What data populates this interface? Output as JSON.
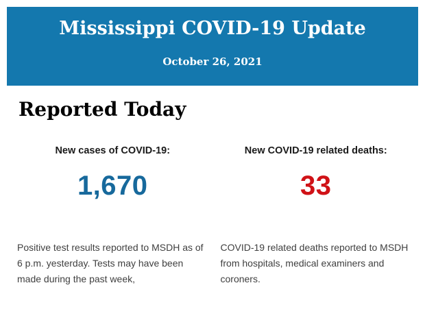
{
  "header": {
    "title": "Mississippi COVID-19 Update",
    "date": "October 26, 2021",
    "background_color": "#1478AE",
    "text_color": "#ffffff"
  },
  "section": {
    "title": "Reported Today"
  },
  "stats": [
    {
      "label": "New cases of COVID-19:",
      "value": "1,670",
      "value_color": "#17699C",
      "description": "Positive test results reported to MSDH as of 6 p.m. yesterday. Tests may have been made during the past week,"
    },
    {
      "label": "New COVID-19 related deaths:",
      "value": "33",
      "value_color": "#D01217",
      "description": "COVID-19 related deaths reported to MSDH from hospitals, medical examiners and coroners."
    }
  ]
}
